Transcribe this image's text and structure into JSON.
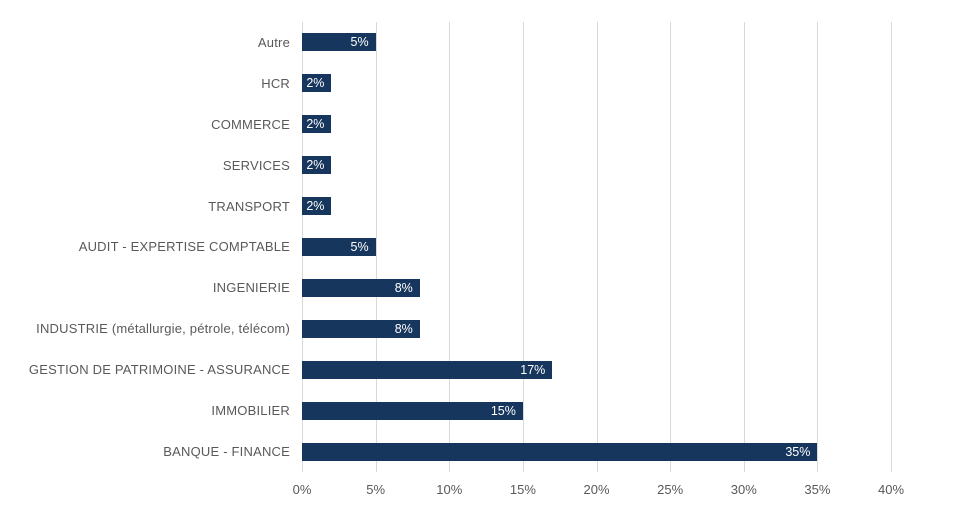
{
  "chart_data": {
    "type": "bar",
    "orientation": "horizontal",
    "title": "",
    "xlabel": "",
    "ylabel": "",
    "categories": [
      "Autre",
      "HCR",
      "COMMERCE",
      "SERVICES",
      "TRANSPORT",
      "AUDIT - EXPERTISE COMPTABLE",
      "INGENIERIE",
      "INDUSTRIE (métallurgie, pétrole, télécom)",
      "GESTION DE PATRIMOINE - ASSURANCE",
      "IMMOBILIER",
      "BANQUE - FINANCE"
    ],
    "values": [
      5,
      2,
      2,
      2,
      2,
      5,
      8,
      8,
      17,
      15,
      35
    ],
    "value_labels": [
      "5%",
      "2%",
      "2%",
      "2%",
      "2%",
      "5%",
      "8%",
      "8%",
      "17%",
      "15%",
      "35%"
    ],
    "x_tick_labels": [
      "0%",
      "5%",
      "10%",
      "15%",
      "20%",
      "25%",
      "30%",
      "35%",
      "40%"
    ],
    "x_tick_values": [
      0,
      5,
      10,
      15,
      20,
      25,
      30,
      35,
      40
    ],
    "xlim": [
      0,
      40
    ],
    "grid": "vertical",
    "legend": "none",
    "colors": {
      "bar": "#17365d",
      "gridline": "#d9d9d9",
      "axis_text": "#595959",
      "category_text": "#595959",
      "value_text": "#ffffff",
      "background": "#ffffff"
    }
  }
}
